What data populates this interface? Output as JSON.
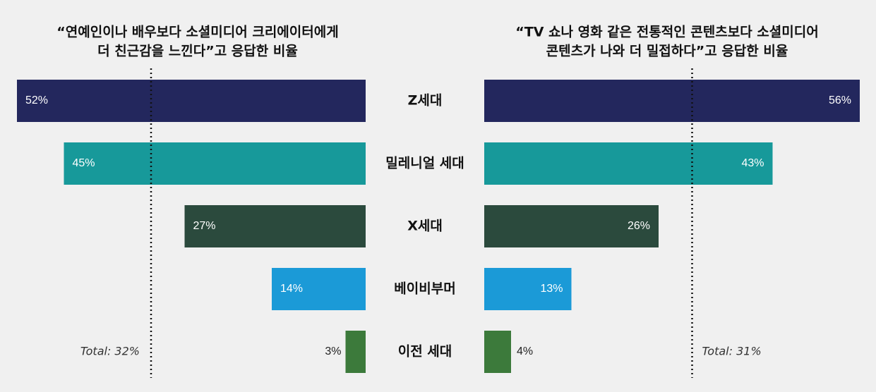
{
  "chart_data": [
    {
      "type": "bar",
      "orientation": "horizontal",
      "direction": "left",
      "title": [
        "“연예인이나 배우보다 소셜미디어 크리에이터에게",
        "더 친근감을 느낀다”고 응답한 비율"
      ],
      "categories": [
        "Z세대",
        "밀레니얼 세대",
        "X세대",
        "베이비부머",
        "이전 세대"
      ],
      "values": [
        52,
        45,
        27,
        14,
        3
      ],
      "value_labels": [
        "52%",
        "45%",
        "27%",
        "14%",
        "3%"
      ],
      "colors": [
        "#23275d",
        "#17999a",
        "#2b4a3d",
        "#1b9ad7",
        "#3c7a3b"
      ],
      "xlim": [
        0,
        56
      ],
      "total": {
        "value": 32,
        "label": "Total: 32%"
      }
    },
    {
      "type": "bar",
      "orientation": "horizontal",
      "direction": "right",
      "title": [
        "“TV 쇼나 영화 같은 전통적인 콘텐츠보다 소셜미디어",
        "콘텐츠가 나와 더 밀접하다”고 응답한 비율"
      ],
      "values": [
        56,
        43,
        26,
        13,
        4
      ],
      "value_labels": [
        "56%",
        "43%",
        "26%",
        "13%",
        "4%"
      ],
      "colors": [
        "#23275d",
        "#17999a",
        "#2b4a3d",
        "#1b9ad7",
        "#3c7a3b"
      ],
      "xlim": [
        0,
        56
      ],
      "total": {
        "value": 31,
        "label": "Total: 31%"
      }
    }
  ]
}
